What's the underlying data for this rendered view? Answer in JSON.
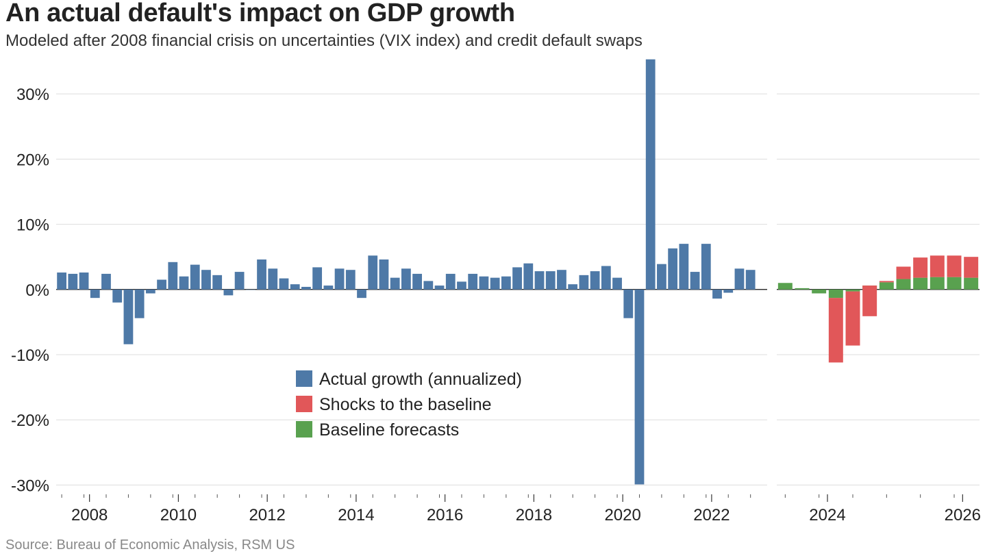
{
  "title": "An actual default's impact on GDP growth",
  "subtitle": "Modeled after 2008 financial crisis on uncertainties (VIX index) and credit default swaps",
  "source": "Source: Bureau of Economic Analysis, RSM US",
  "chart_data": {
    "type": "bar",
    "ylim": [
      -33,
      36
    ],
    "yticks": [
      30,
      20,
      10,
      0,
      -10,
      -20,
      -30
    ],
    "ytick_labels": [
      "30%",
      "20%",
      "10%",
      "0%",
      "-10%",
      "-20%",
      "-30%"
    ],
    "grid": true,
    "legend_position": "center-bottom",
    "colors": {
      "actual": "#4e79a7",
      "shocks": "#e15759",
      "baseline": "#59a14f",
      "grid": "#dddddd",
      "zero": "#333333"
    },
    "panels": [
      {
        "name": "history",
        "x_start": 2007.25,
        "x_end": 2023.25,
        "xtick_labels": [
          "2008",
          "2010",
          "2012",
          "2014",
          "2016",
          "2018",
          "2020",
          "2022"
        ],
        "xtick_values": [
          2008,
          2010,
          2012,
          2014,
          2016,
          2018,
          2020,
          2022
        ],
        "series": [
          {
            "name": "Actual growth (annualized)",
            "color_key": "actual",
            "values": [
              2.6,
              2.4,
              2.6,
              -1.3,
              2.4,
              -2.0,
              -8.4,
              -4.4,
              -0.6,
              1.5,
              4.2,
              2.0,
              3.8,
              3.0,
              2.2,
              -0.9,
              2.7,
              0.0,
              4.6,
              3.2,
              1.7,
              0.8,
              0.4,
              3.4,
              0.6,
              3.2,
              3.0,
              -1.3,
              5.2,
              4.6,
              1.8,
              3.2,
              2.4,
              1.3,
              0.6,
              2.4,
              1.2,
              2.4,
              2.0,
              1.8,
              2.0,
              3.4,
              4.0,
              2.8,
              2.8,
              3.0,
              0.8,
              2.2,
              2.8,
              3.6,
              1.8,
              -4.4,
              -29.9,
              35.3,
              3.9,
              6.3,
              7.0,
              2.7,
              7.0,
              -1.4,
              -0.5,
              3.2,
              3.0
            ]
          }
        ]
      },
      {
        "name": "forecast",
        "x_start": 2023.25,
        "x_end": 2026.25,
        "xtick_labels": [
          "2024",
          "2026"
        ],
        "xtick_values": [
          2024,
          2026
        ],
        "series": [
          {
            "name": "Baseline forecasts",
            "color_key": "baseline",
            "values": [
              1.0,
              0.2,
              -0.6,
              -1.3,
              -0.3,
              0.6,
              1.1,
              1.6,
              1.8,
              1.9,
              1.9,
              1.8
            ]
          },
          {
            "name": "Shocks to the baseline",
            "color_key": "shocks",
            "values": [
              0.0,
              0.0,
              0.0,
              -9.9,
              -8.3,
              -4.7,
              0.2,
              1.9,
              3.1,
              3.3,
              3.3,
              3.2
            ]
          }
        ]
      }
    ],
    "legend": [
      {
        "label": "Actual growth (annualized)",
        "color_key": "actual"
      },
      {
        "label": "Shocks to the baseline",
        "color_key": "shocks"
      },
      {
        "label": "Baseline forecasts",
        "color_key": "baseline"
      }
    ]
  }
}
